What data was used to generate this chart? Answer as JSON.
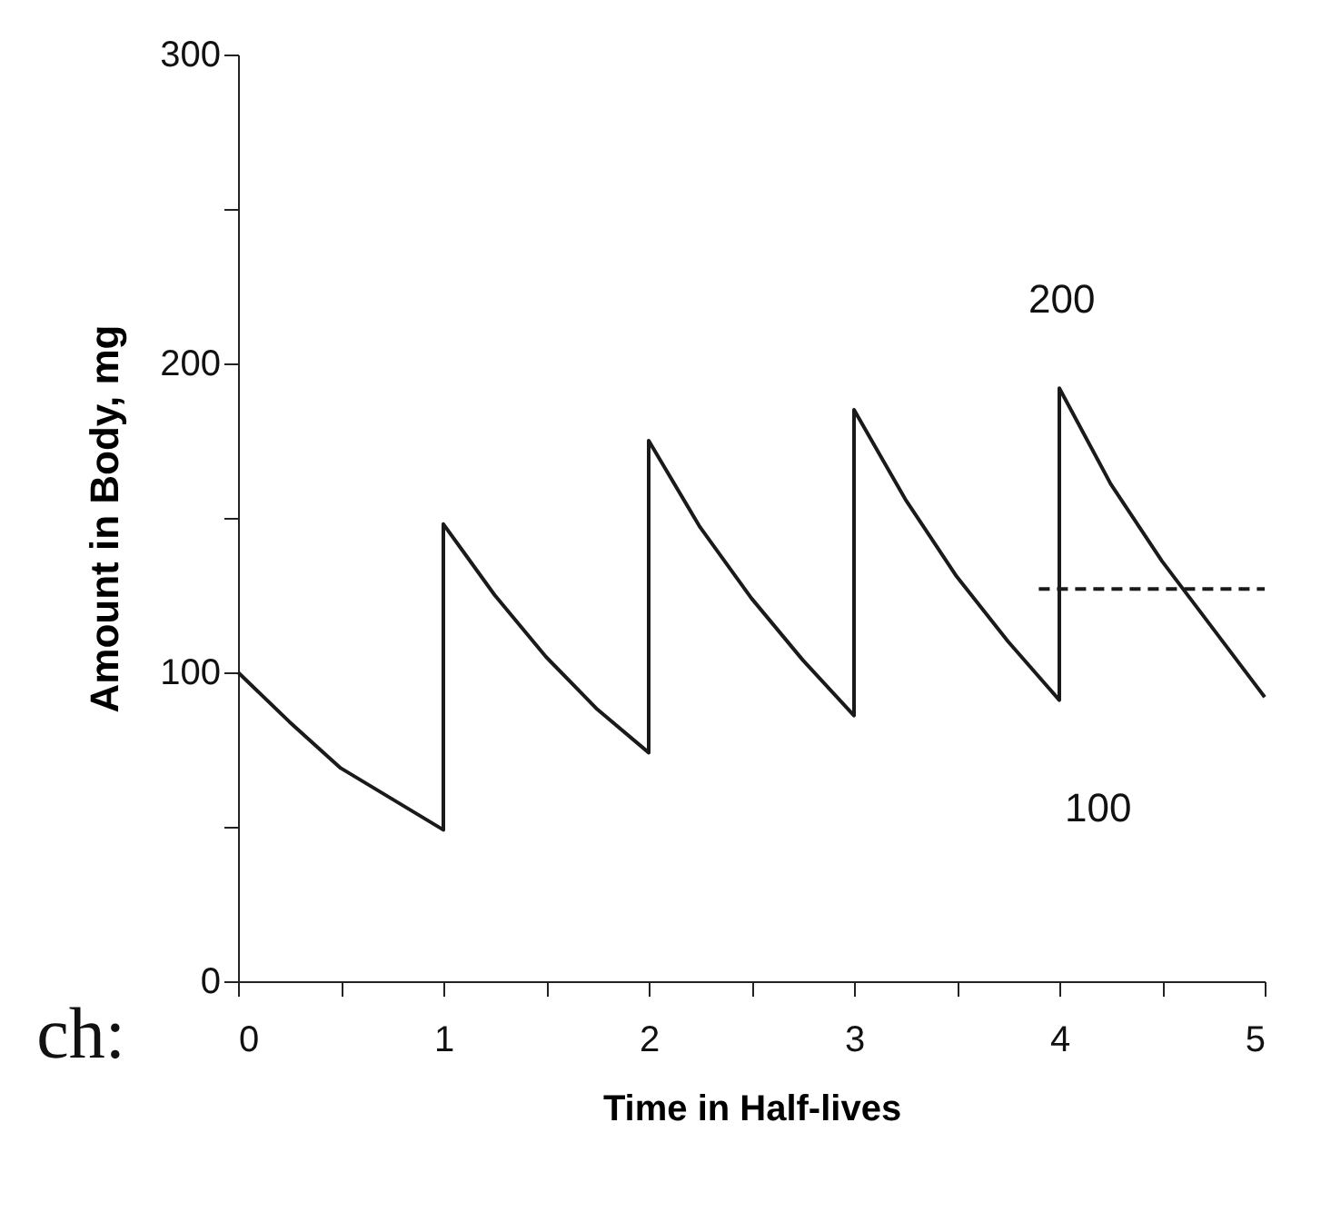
{
  "chart_data": {
    "type": "line",
    "xlabel": "Time in Half-lives",
    "ylabel": "Amount in Body, mg",
    "xlim": [
      0,
      5
    ],
    "ylim": [
      0,
      300
    ],
    "xticks": [
      0,
      {
        "value": 0.5,
        "label": null
      },
      1,
      {
        "value": 1.5,
        "label": null
      },
      2,
      {
        "value": 2.5,
        "label": null
      },
      3,
      {
        "value": 3.5,
        "label": null
      },
      4,
      {
        "value": 4.5,
        "label": null
      },
      5
    ],
    "yticks": [
      0,
      {
        "value": 50,
        "label": null
      },
      100,
      {
        "value": 150,
        "label": null
      },
      200,
      {
        "value": 250,
        "label": null
      },
      300
    ],
    "grid": false,
    "marker": "none",
    "series": [
      {
        "color": "#1a1a1a",
        "line_style": "solid",
        "x": [
          0,
          0.25,
          0.5,
          0.75,
          1,
          1,
          1.25,
          1.5,
          1.75,
          2,
          2,
          2.25,
          2.5,
          2.75,
          3,
          3,
          3.25,
          3.5,
          3.75,
          4,
          4,
          4.25,
          4.5,
          4.75,
          5
        ],
        "values": [
          100,
          84,
          69,
          59,
          49,
          148,
          125,
          105,
          88,
          74,
          175,
          147,
          124,
          104,
          86,
          185,
          156,
          131,
          110,
          91,
          192,
          161,
          136,
          114,
          92
        ]
      },
      {
        "type": "line",
        "color": "#1a1a1a",
        "line_style": "dashed",
        "x": [
          3.9,
          5
        ],
        "values": [
          127,
          127
        ]
      }
    ],
    "annotations": [
      "200",
      "100",
      "ch:"
    ]
  }
}
